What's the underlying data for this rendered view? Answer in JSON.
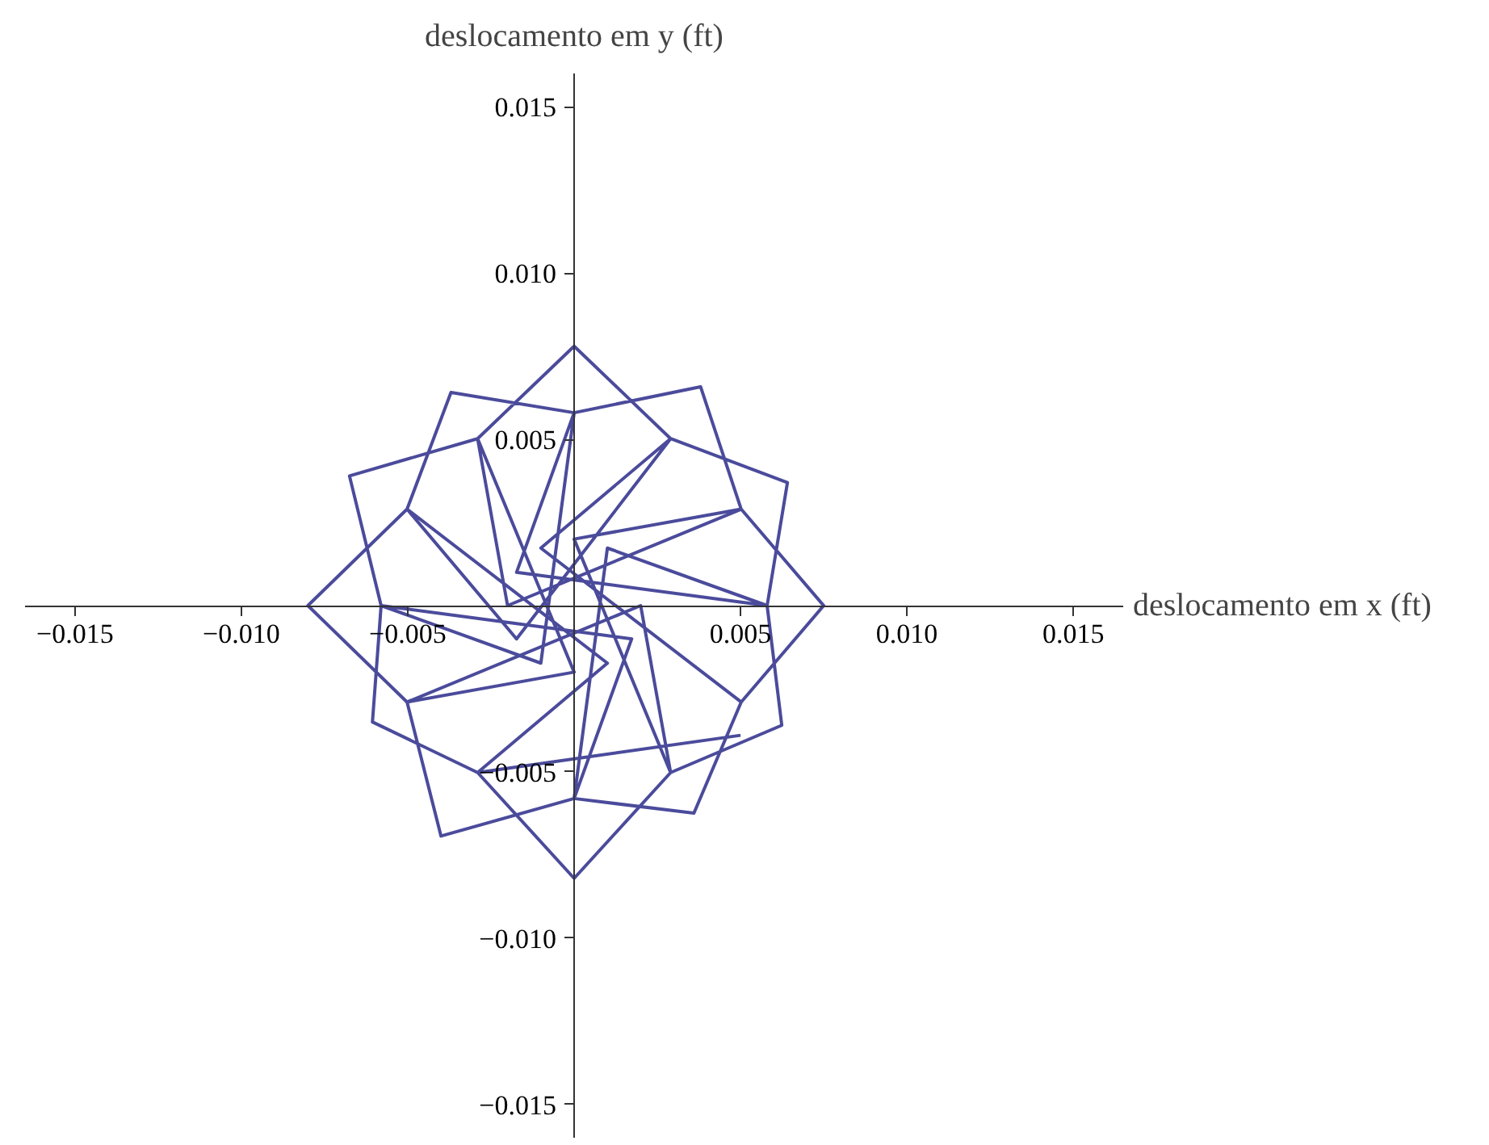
{
  "chart_data": {
    "type": "line",
    "xlabel": "deslocamento em x (ft)",
    "ylabel": "deslocamento em y (ft)",
    "xlim": [
      -0.0165,
      0.0165
    ],
    "ylim": [
      -0.016,
      0.016
    ],
    "xticks": [
      {
        "value": -0.015,
        "label": "−0.015"
      },
      {
        "value": -0.01,
        "label": "−0.010"
      },
      {
        "value": -0.005,
        "label": "−0.005"
      },
      {
        "value": 0.005,
        "label": "0.005"
      },
      {
        "value": 0.01,
        "label": "0.010"
      },
      {
        "value": 0.015,
        "label": "0.015"
      }
    ],
    "yticks": [
      {
        "value": -0.015,
        "label": "−0.015"
      },
      {
        "value": -0.01,
        "label": "−0.010"
      },
      {
        "value": -0.005,
        "label": "−0.005"
      },
      {
        "value": 0.005,
        "label": "0.005"
      },
      {
        "value": 0.01,
        "label": "0.010"
      },
      {
        "value": 0.015,
        "label": "0.015"
      }
    ],
    "grid": false,
    "marker": "none",
    "line_style": "solid",
    "series": [
      {
        "color": "#4b4b9c",
        "x": [
          0.00502,
          0.0075,
          0.00502,
          -0.002,
          -0.0029,
          -0.00675,
          -0.0058,
          0.00173,
          0,
          0.0036,
          0.00502,
          -0.001,
          0.0029,
          0,
          -0.0029,
          0,
          -0.00502,
          -0.004,
          0,
          0.001,
          0.0058,
          0.00641,
          0.0029,
          -0.00173,
          -0.00502,
          -0.008,
          -0.00502,
          0.002,
          0.0029,
          0.00624,
          0.0058,
          -0.00173,
          0,
          -0.0037,
          -0.00502,
          0.001,
          -0.0029,
          0,
          0.0029,
          0,
          0.00502,
          0.0038,
          0,
          -0.001,
          -0.0058,
          -0.00606,
          -0.0029,
          0.005
        ],
        "values": [
          -0.0029,
          0,
          0.0029,
          0,
          0.00502,
          0.0039,
          0,
          -0.001,
          -0.0058,
          -0.00624,
          -0.0029,
          0.00173,
          0.00502,
          0.0078,
          0.00502,
          -0.002,
          -0.0029,
          -0.00693,
          -0.0058,
          0.00173,
          0,
          0.0037,
          0.00502,
          -0.001,
          0.0029,
          0,
          -0.0029,
          0,
          -0.00502,
          -0.0036,
          0,
          0.001,
          0.0058,
          0.00641,
          0.0029,
          -0.00173,
          -0.00502,
          -0.0082,
          -0.00502,
          0.002,
          0.0029,
          0.00658,
          0.0058,
          -0.00173,
          0,
          -0.0035,
          -0.00502,
          -0.0039
        ]
      }
    ]
  }
}
